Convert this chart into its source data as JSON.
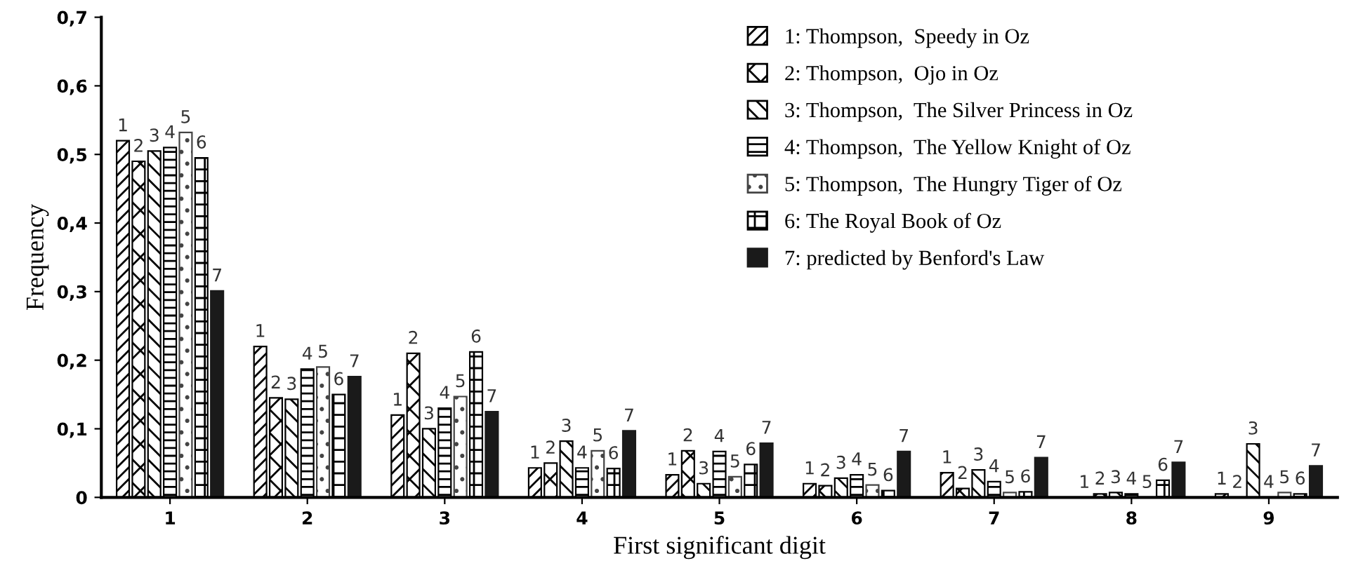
{
  "chart_data": {
    "type": "bar",
    "xlabel": "First significant digit",
    "ylabel": "Frequency",
    "categories": [
      "1",
      "2",
      "3",
      "4",
      "5",
      "6",
      "7",
      "8",
      "9"
    ],
    "series": [
      {
        "name": "1: Thompson,  Speedy in Oz",
        "color": "#000000",
        "values": [
          0.52,
          0.22,
          0.12,
          0.043,
          0.033,
          0.02,
          0.036,
          null,
          0.005
        ]
      },
      {
        "name": "2: Thompson,  Ojo in Oz",
        "color": "#000000",
        "values": [
          0.49,
          0.145,
          0.21,
          0.05,
          0.068,
          0.017,
          0.013,
          0.005,
          null
        ]
      },
      {
        "name": "3: Thompson,  The Silver Princess in Oz",
        "color": "#000000",
        "values": [
          0.505,
          0.143,
          0.1,
          0.082,
          0.02,
          0.028,
          0.04,
          0.007,
          0.078
        ]
      },
      {
        "name": "4: Thompson,  The Yellow Knight of Oz",
        "color": "#000000",
        "values": [
          0.51,
          0.187,
          0.13,
          0.043,
          0.067,
          0.033,
          0.023,
          0.005,
          null
        ]
      },
      {
        "name": "5: Thompson,  The Hungry Tiger of Oz",
        "color": "#444444",
        "values": [
          0.532,
          0.19,
          0.147,
          0.068,
          0.03,
          0.018,
          0.007,
          null,
          0.007
        ]
      },
      {
        "name": "6: The Royal Book of Oz",
        "color": "#000000",
        "values": [
          0.495,
          0.15,
          0.212,
          0.042,
          0.048,
          0.01,
          0.008,
          0.025,
          0.005
        ]
      },
      {
        "name": "7: predicted by Benford's Law",
        "color": "#1a1a1a",
        "values": [
          0.301,
          0.176,
          0.125,
          0.097,
          0.079,
          0.067,
          0.058,
          0.051,
          0.046
        ]
      }
    ],
    "annotations": [
      "1",
      "2",
      "3",
      "4",
      "5",
      "6",
      "7",
      "1",
      "2",
      "3",
      "4",
      "5",
      "6",
      "7",
      "1",
      "2",
      "3",
      "4",
      "5",
      "6",
      "7",
      "1",
      "2",
      "3",
      "4",
      "5",
      "6",
      "7",
      "1",
      "2",
      "3",
      "4",
      "5",
      "6",
      "7",
      "1",
      "2",
      "3",
      "4",
      "5",
      "6",
      "7",
      "1",
      "2",
      "3",
      "4",
      "5",
      "6",
      "7",
      "1",
      "2",
      "3",
      "4",
      "5",
      "6",
      "7",
      "1",
      "2",
      "3",
      "4",
      "5",
      "6",
      "7"
    ],
    "ylim": [
      0,
      0.7
    ],
    "yticks": [
      {
        "value": 0,
        "label": "0"
      },
      {
        "value": 0.1,
        "label": "0,1"
      },
      {
        "value": 0.2,
        "label": "0,2"
      },
      {
        "value": 0.3,
        "label": "0,3"
      },
      {
        "value": 0.4,
        "label": "0,4"
      },
      {
        "value": 0.5,
        "label": "0,5"
      },
      {
        "value": 0.6,
        "label": "0,6"
      },
      {
        "value": 0.7,
        "label": "0,7"
      }
    ],
    "grid": false,
    "legend": "top right"
  }
}
